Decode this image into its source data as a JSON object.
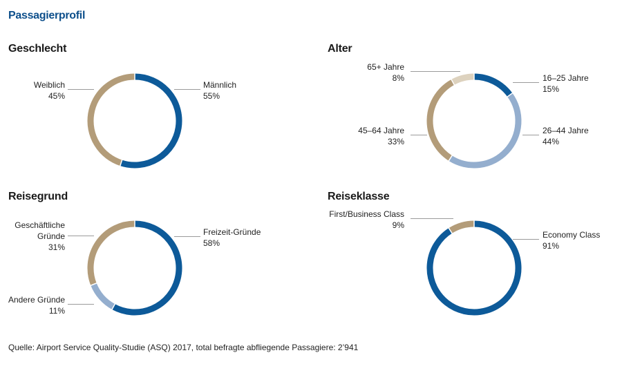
{
  "page_title": "Passagierprofil",
  "source": "Quelle: Airport Service Quality-Studie (ASQ) 2017, total befragte abfliegende Passagiere: 2’941",
  "colors": {
    "dark_blue": "#0d5a99",
    "light_blue": "#94aece",
    "tan": "#b39c79",
    "light_tan": "#ddd2be"
  },
  "chart_data": [
    {
      "type": "pie",
      "title": "Geschlecht",
      "slices": [
        {
          "name_lines": [
            "Männlich"
          ],
          "pct_label": "55%",
          "value": 55,
          "color": "#0d5a99"
        },
        {
          "name_lines": [
            "Weiblich"
          ],
          "pct_label": "45%",
          "value": 45,
          "color": "#b39c79"
        }
      ]
    },
    {
      "type": "pie",
      "title": "Alter",
      "slices": [
        {
          "name_lines": [
            "16–25 Jahre"
          ],
          "pct_label": "15%",
          "value": 15,
          "color": "#0d5a99"
        },
        {
          "name_lines": [
            "26–44 Jahre"
          ],
          "pct_label": "44%",
          "value": 44,
          "color": "#94aece"
        },
        {
          "name_lines": [
            "45–64 Jahre"
          ],
          "pct_label": "33%",
          "value": 33,
          "color": "#b39c79"
        },
        {
          "name_lines": [
            "65+ Jahre"
          ],
          "pct_label": "8%",
          "value": 8,
          "color": "#ddd2be"
        }
      ]
    },
    {
      "type": "pie",
      "title": "Reisegrund",
      "slices": [
        {
          "name_lines": [
            "Freizeit-Gründe"
          ],
          "pct_label": "58%",
          "value": 58,
          "color": "#0d5a99"
        },
        {
          "name_lines": [
            "Andere Gründe"
          ],
          "pct_label": "11%",
          "value": 11,
          "color": "#94aece"
        },
        {
          "name_lines": [
            "Geschäftliche",
            "Gründe"
          ],
          "pct_label": "31%",
          "value": 31,
          "color": "#b39c79"
        }
      ]
    },
    {
      "type": "pie",
      "title": "Reiseklasse",
      "slices": [
        {
          "name_lines": [
            "Economy Class"
          ],
          "pct_label": "91%",
          "value": 91,
          "color": "#0d5a99"
        },
        {
          "name_lines": [
            "First/Business Class"
          ],
          "pct_label": "9%",
          "value": 9,
          "color": "#b39c79"
        }
      ]
    }
  ]
}
